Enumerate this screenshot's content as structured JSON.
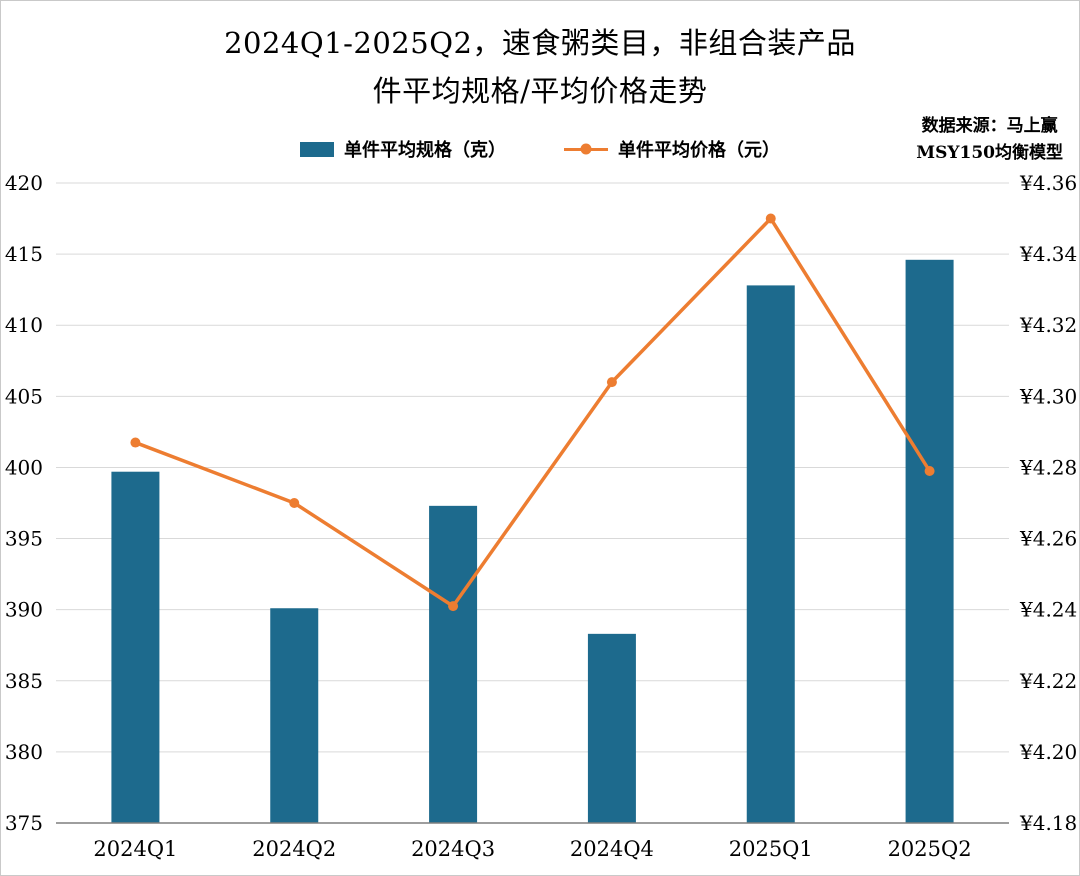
{
  "title": {
    "line1": "2024Q1-2025Q2，速食粥类目，非组合装产品",
    "line2": "件平均规格/平均价格走势"
  },
  "source": {
    "line1": "数据来源：马上赢",
    "line2": "MSY150均衡模型"
  },
  "colors": {
    "bar": "#1d6a8d",
    "line": "#ed7d31",
    "grid": "#d9d9d9",
    "axis": "#7f7f7f",
    "text": "#000000"
  },
  "chart_data": {
    "type": "bar",
    "subtype": "combo-bar-line-dual-axis",
    "categories": [
      "2024Q1",
      "2024Q2",
      "2024Q3",
      "2024Q4",
      "2025Q1",
      "2025Q2"
    ],
    "series": [
      {
        "name": "单件平均规格（克）",
        "type": "bar",
        "axis": "left",
        "color": "#1d6a8d",
        "values": [
          399.7,
          390.1,
          397.3,
          388.3,
          412.8,
          414.6
        ]
      },
      {
        "name": "单件平均价格（元）",
        "type": "line",
        "axis": "right",
        "color": "#ed7d31",
        "values": [
          4.287,
          4.27,
          4.241,
          4.304,
          4.35,
          4.279
        ]
      }
    ],
    "left_axis": {
      "min": 375,
      "max": 420,
      "step": 5,
      "ticks": [
        375,
        380,
        385,
        390,
        395,
        400,
        405,
        410,
        415,
        420
      ]
    },
    "right_axis": {
      "min": 4.18,
      "max": 4.36,
      "step": 0.02,
      "tick_labels": [
        "¥4.18",
        "¥4.20",
        "¥4.22",
        "¥4.24",
        "¥4.26",
        "¥4.28",
        "¥4.30",
        "¥4.32",
        "¥4.34",
        "¥4.36"
      ]
    },
    "grid": true,
    "legend_position": "top"
  }
}
